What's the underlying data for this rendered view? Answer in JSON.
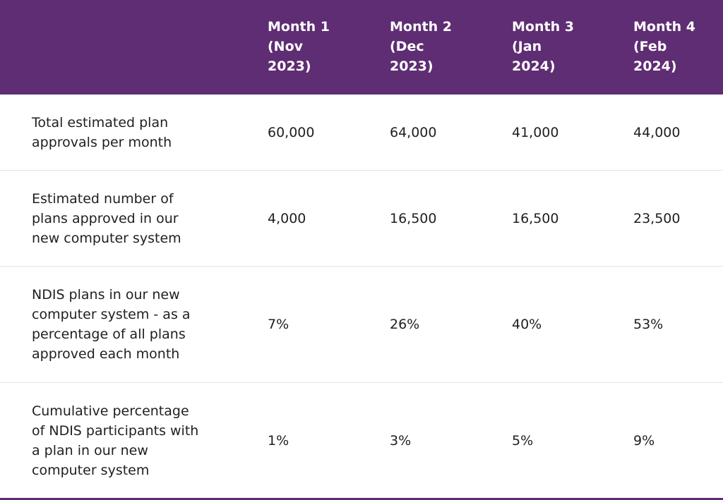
{
  "header": {
    "blank": "",
    "columns": [
      "Month 1\n(Nov\n2023)",
      "Month 2\n(Dec\n2023)",
      "Month 3\n(Jan\n2024)",
      "Month 4\n(Feb\n2024)"
    ]
  },
  "rows": [
    {
      "label": "Total estimated plan\napprovals per month",
      "values": [
        "60,000",
        "64,000",
        "41,000",
        "44,000"
      ]
    },
    {
      "label": "Estimated number of\nplans approved in our\nnew computer system",
      "values": [
        "4,000",
        "16,500",
        "16,500",
        "23,500"
      ]
    },
    {
      "label": "NDIS plans in our new\ncomputer system - as a\npercentage of all plans\napproved each month",
      "values": [
        "7%",
        "26%",
        "40%",
        "53%"
      ]
    },
    {
      "label": "Cumulative percentage\nof NDIS participants with\na plan in our new\ncomputer system",
      "values": [
        "1%",
        "3%",
        "5%",
        "9%"
      ]
    }
  ],
  "colors": {
    "header_background": "#5f2d73",
    "header_text": "#ffffff",
    "body_text": "#1f1f1f"
  }
}
